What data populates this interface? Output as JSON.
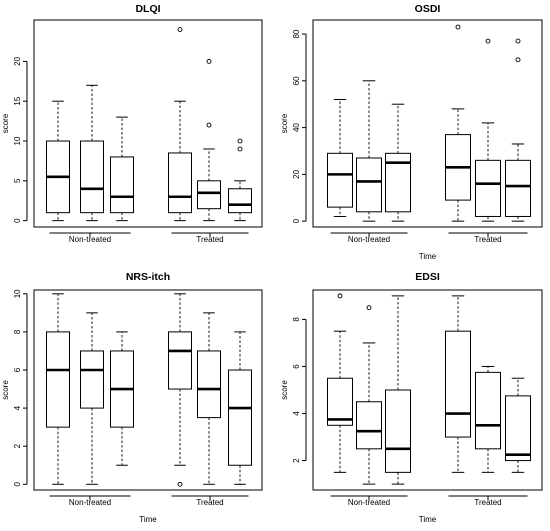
{
  "chart_data": [
    {
      "type": "box",
      "title": "DLQI",
      "ylabel": "score",
      "xlabel": "",
      "ylim": [
        -0.8,
        25.2
      ],
      "yticks": [
        0,
        5,
        10,
        15,
        20
      ],
      "groups": [
        "Non-treated",
        "Treated"
      ],
      "boxes": [
        {
          "group": 0,
          "min": 0,
          "q1": 1,
          "median": 5.5,
          "q3": 10,
          "max": 15,
          "outliers": []
        },
        {
          "group": 0,
          "min": 0,
          "q1": 1,
          "median": 4,
          "q3": 10,
          "max": 17,
          "outliers": []
        },
        {
          "group": 0,
          "min": 0,
          "q1": 1,
          "median": 3,
          "q3": 8,
          "max": 13,
          "outliers": []
        },
        {
          "group": 1,
          "min": 0,
          "q1": 1,
          "median": 3,
          "q3": 8.5,
          "max": 15,
          "outliers": [
            24
          ]
        },
        {
          "group": 1,
          "min": 0,
          "q1": 1.5,
          "median": 3.5,
          "q3": 5,
          "max": 9,
          "outliers": [
            12,
            20
          ]
        },
        {
          "group": 1,
          "min": 0,
          "q1": 1,
          "median": 2,
          "q3": 4,
          "max": 5,
          "outliers": [
            9,
            10
          ]
        }
      ]
    },
    {
      "type": "box",
      "title": "OSDI",
      "ylabel": "score",
      "xlabel": "Time",
      "ylim": [
        -2.5,
        86
      ],
      "yticks": [
        0,
        20,
        40,
        60,
        80
      ],
      "groups": [
        "Non-treated",
        "Treated"
      ],
      "boxes": [
        {
          "group": 0,
          "min": 2,
          "q1": 6,
          "median": 20,
          "q3": 29,
          "max": 52,
          "outliers": []
        },
        {
          "group": 0,
          "min": 0,
          "q1": 4,
          "median": 17,
          "q3": 27,
          "max": 60,
          "outliers": []
        },
        {
          "group": 0,
          "min": 0,
          "q1": 4,
          "median": 25,
          "q3": 29,
          "max": 50,
          "outliers": []
        },
        {
          "group": 1,
          "min": 0,
          "q1": 9,
          "median": 23,
          "q3": 37,
          "max": 48,
          "outliers": [
            83
          ]
        },
        {
          "group": 1,
          "min": 0,
          "q1": 2,
          "median": 16,
          "q3": 26,
          "max": 42,
          "outliers": [
            77
          ]
        },
        {
          "group": 1,
          "min": 0,
          "q1": 2,
          "median": 15,
          "q3": 26,
          "max": 33,
          "outliers": [
            69,
            77
          ]
        }
      ]
    },
    {
      "type": "box",
      "title": "NRS-itch",
      "ylabel": "score",
      "xlabel": "Time",
      "ylim": [
        -0.3,
        10.2
      ],
      "yticks": [
        0,
        2,
        4,
        6,
        8,
        10
      ],
      "groups": [
        "Non-treated",
        "Treated"
      ],
      "boxes": [
        {
          "group": 0,
          "min": 0,
          "q1": 3,
          "median": 6,
          "q3": 8,
          "max": 10,
          "outliers": []
        },
        {
          "group": 0,
          "min": 0,
          "q1": 4,
          "median": 6,
          "q3": 7,
          "max": 9,
          "outliers": []
        },
        {
          "group": 0,
          "min": 1,
          "q1": 3,
          "median": 5,
          "q3": 7,
          "max": 8,
          "outliers": []
        },
        {
          "group": 1,
          "min": 1,
          "q1": 5,
          "median": 7,
          "q3": 8,
          "max": 10,
          "outliers": [
            0
          ]
        },
        {
          "group": 1,
          "min": 0,
          "q1": 3.5,
          "median": 5,
          "q3": 7,
          "max": 9,
          "outliers": []
        },
        {
          "group": 1,
          "min": 0,
          "q1": 1,
          "median": 4,
          "q3": 6,
          "max": 8,
          "outliers": []
        }
      ]
    },
    {
      "type": "box",
      "title": "EDSI",
      "ylabel": "score",
      "xlabel": "Time",
      "ylim": [
        0.75,
        9.25
      ],
      "yticks": [
        2,
        4,
        6,
        8
      ],
      "groups": [
        "Non-treated",
        "Treated"
      ],
      "boxes": [
        {
          "group": 0,
          "min": 1.5,
          "q1": 3.5,
          "median": 3.75,
          "q3": 5.5,
          "max": 7.5,
          "outliers": [
            9
          ]
        },
        {
          "group": 0,
          "min": 1,
          "q1": 2.5,
          "median": 3.25,
          "q3": 4.5,
          "max": 7,
          "outliers": [
            8.5
          ]
        },
        {
          "group": 0,
          "min": 1,
          "q1": 1.5,
          "median": 2.5,
          "q3": 5,
          "max": 9,
          "outliers": []
        },
        {
          "group": 1,
          "min": 1.5,
          "q1": 3,
          "median": 4,
          "q3": 7.5,
          "max": 9,
          "outliers": []
        },
        {
          "group": 1,
          "min": 1.5,
          "q1": 2.5,
          "median": 3.5,
          "q3": 5.75,
          "max": 6,
          "outliers": []
        },
        {
          "group": 1,
          "min": 1.5,
          "q1": 2,
          "median": 2.25,
          "q3": 4.75,
          "max": 5.5,
          "outliers": []
        }
      ]
    }
  ]
}
